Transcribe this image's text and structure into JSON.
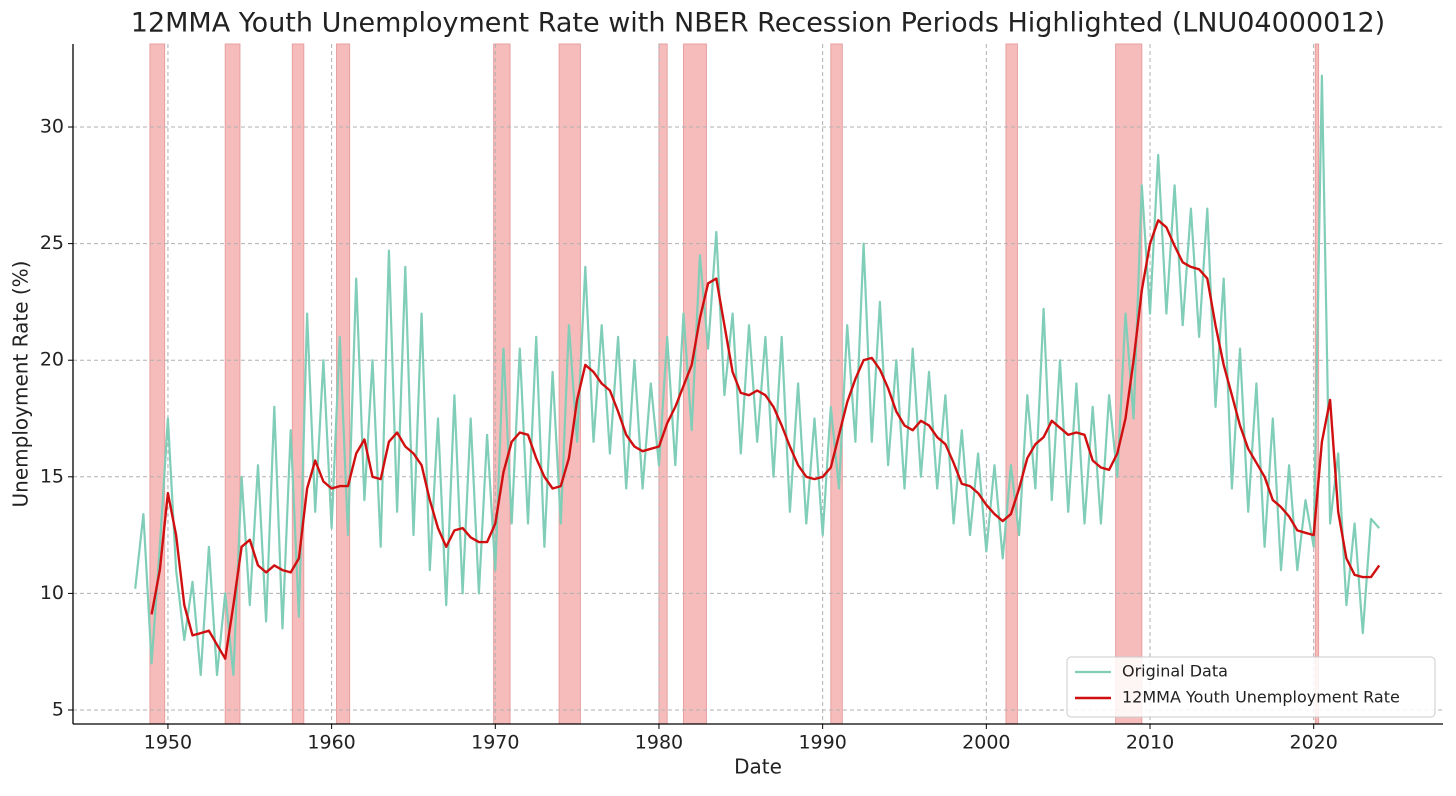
{
  "chart_data": {
    "type": "line",
    "title": "12MMA Youth Unemployment Rate with NBER Recession Periods Highlighted (LNU04000012)",
    "xlabel": "Date",
    "ylabel": "Unemployment Rate (%)",
    "xlim": [
      1944.2,
      2027.9
    ],
    "xticks": [
      1950,
      1960,
      1970,
      1980,
      1990,
      2000,
      2010,
      2020
    ],
    "ylim": [
      4.4,
      33.56
    ],
    "yticks": [
      5,
      10,
      15,
      20,
      25,
      30
    ],
    "grid": true,
    "legend": "lower right",
    "recession_color": "#f4a6a6",
    "recessions": [
      [
        1948.9,
        1949.8
      ],
      [
        1953.5,
        1954.4
      ],
      [
        1957.6,
        1958.3
      ],
      [
        1960.3,
        1961.1
      ],
      [
        1969.9,
        1970.9
      ],
      [
        1973.9,
        1975.2
      ],
      [
        1980.0,
        1980.5
      ],
      [
        1981.5,
        1982.9
      ],
      [
        1990.5,
        1991.2
      ],
      [
        2001.2,
        2001.9
      ],
      [
        2007.9,
        2009.5
      ],
      [
        2020.1,
        2020.3
      ]
    ],
    "x": [
      1948,
      1948.5,
      1949,
      1949.5,
      1950,
      1950.5,
      1951,
      1951.5,
      1952,
      1952.5,
      1953,
      1953.5,
      1954,
      1954.5,
      1955,
      1955.5,
      1956,
      1956.5,
      1957,
      1957.5,
      1958,
      1958.5,
      1959,
      1959.5,
      1960,
      1960.5,
      1961,
      1961.5,
      1962,
      1962.5,
      1963,
      1963.5,
      1964,
      1964.5,
      1965,
      1965.5,
      1966,
      1966.5,
      1967,
      1967.5,
      1968,
      1968.5,
      1969,
      1969.5,
      1970,
      1970.5,
      1971,
      1971.5,
      1972,
      1972.5,
      1973,
      1973.5,
      1974,
      1974.5,
      1975,
      1975.5,
      1976,
      1976.5,
      1977,
      1977.5,
      1978,
      1978.5,
      1979,
      1979.5,
      1980,
      1980.5,
      1981,
      1981.5,
      1982,
      1982.5,
      1983,
      1983.5,
      1984,
      1984.5,
      1985,
      1985.5,
      1986,
      1986.5,
      1987,
      1987.5,
      1988,
      1988.5,
      1989,
      1989.5,
      1990,
      1990.5,
      1991,
      1991.5,
      1992,
      1992.5,
      1993,
      1993.5,
      1994,
      1994.5,
      1995,
      1995.5,
      1996,
      1996.5,
      1997,
      1997.5,
      1998,
      1998.5,
      1999,
      1999.5,
      2000,
      2000.5,
      2001,
      2001.5,
      2002,
      2002.5,
      2003,
      2003.5,
      2004,
      2004.5,
      2005,
      2005.5,
      2006,
      2006.5,
      2007,
      2007.5,
      2008,
      2008.5,
      2009,
      2009.5,
      2010,
      2010.5,
      2011,
      2011.5,
      2012,
      2012.5,
      2013,
      2013.5,
      2014,
      2014.5,
      2015,
      2015.5,
      2016,
      2016.5,
      2017,
      2017.5,
      2018,
      2018.5,
      2019,
      2019.5,
      2020,
      2020.5,
      2021,
      2021.5,
      2022,
      2022.5,
      2023,
      2023.5,
      2024
    ],
    "series": [
      {
        "name": "Original Data",
        "color": "#80cdb8",
        "width": 2.2,
        "values": [
          10.2,
          13.4,
          7.0,
          12.0,
          17.5,
          11.0,
          8.0,
          10.5,
          6.5,
          12.0,
          6.5,
          10.0,
          6.5,
          15.0,
          9.5,
          15.5,
          8.8,
          18.0,
          8.5,
          17.0,
          9.0,
          22.0,
          13.5,
          20.0,
          12.8,
          21.0,
          12.5,
          23.5,
          14.0,
          20.0,
          12.0,
          24.7,
          13.5,
          24.0,
          12.5,
          22.0,
          11.0,
          17.5,
          9.5,
          18.5,
          10.0,
          17.5,
          10.0,
          16.8,
          11.0,
          20.5,
          13.0,
          20.5,
          13.0,
          21.0,
          12.0,
          19.5,
          13.0,
          21.5,
          16.5,
          24.0,
          16.5,
          21.5,
          16.0,
          21.0,
          14.5,
          20.0,
          14.5,
          19.0,
          15.5,
          21.0,
          15.5,
          22.0,
          17.0,
          24.5,
          20.5,
          25.5,
          18.5,
          22.0,
          16.0,
          21.5,
          16.5,
          21.0,
          15.0,
          21.0,
          13.5,
          19.0,
          13.0,
          17.5,
          12.5,
          18.0,
          14.5,
          21.5,
          16.5,
          25.0,
          16.5,
          22.5,
          15.5,
          20.0,
          14.5,
          20.5,
          15.0,
          19.5,
          14.5,
          18.5,
          13.0,
          17.0,
          12.5,
          16.0,
          11.8,
          15.5,
          11.5,
          15.5,
          12.5,
          18.5,
          14.5,
          22.2,
          14.0,
          20.0,
          13.5,
          19.0,
          13.0,
          18.0,
          13.0,
          18.5,
          15.0,
          22.0,
          17.5,
          27.5,
          22.0,
          28.8,
          22.0,
          27.5,
          21.5,
          26.5,
          21.0,
          26.5,
          18.0,
          23.5,
          14.5,
          20.5,
          13.5,
          19.0,
          12.0,
          17.5,
          11.0,
          15.5,
          11.0,
          14.0,
          12.0,
          32.2,
          13.0,
          16.0,
          9.5,
          13.0,
          8.3,
          13.2,
          12.8
        ]
      },
      {
        "name": "12MMA Youth Unemployment Rate",
        "color": "#d01010",
        "width": 2.4,
        "values": [
          null,
          null,
          9.1,
          11.0,
          14.3,
          12.5,
          9.5,
          8.2,
          8.3,
          8.4,
          7.8,
          7.2,
          9.5,
          12.0,
          12.3,
          11.2,
          10.9,
          11.2,
          11.0,
          10.9,
          11.5,
          14.5,
          15.7,
          14.8,
          14.5,
          14.6,
          14.6,
          16.0,
          16.6,
          15.0,
          14.9,
          16.5,
          16.9,
          16.3,
          16.0,
          15.5,
          14.0,
          12.8,
          12.0,
          12.7,
          12.8,
          12.4,
          12.2,
          12.2,
          13.0,
          15.2,
          16.5,
          16.9,
          16.8,
          15.8,
          15.0,
          14.5,
          14.6,
          15.8,
          18.3,
          19.8,
          19.5,
          19.0,
          18.7,
          17.8,
          16.8,
          16.3,
          16.1,
          16.2,
          16.3,
          17.3,
          18.0,
          18.9,
          19.8,
          21.8,
          23.3,
          23.5,
          21.5,
          19.5,
          18.6,
          18.5,
          18.7,
          18.5,
          18.0,
          17.2,
          16.3,
          15.5,
          15.0,
          14.9,
          15.0,
          15.4,
          16.8,
          18.2,
          19.2,
          20.0,
          20.1,
          19.6,
          18.8,
          17.8,
          17.2,
          17.0,
          17.4,
          17.2,
          16.7,
          16.4,
          15.6,
          14.7,
          14.6,
          14.3,
          13.8,
          13.4,
          13.1,
          13.4,
          14.5,
          15.8,
          16.4,
          16.7,
          17.4,
          17.1,
          16.8,
          16.9,
          16.8,
          15.7,
          15.4,
          15.3,
          16.0,
          17.5,
          20.0,
          23.0,
          25.0,
          26.0,
          25.7,
          24.9,
          24.2,
          24.0,
          23.9,
          23.5,
          21.5,
          19.8,
          18.5,
          17.2,
          16.2,
          15.6,
          15.0,
          14.0,
          13.7,
          13.3,
          12.7,
          12.6,
          12.5,
          16.5,
          18.3,
          13.5,
          11.5,
          10.8,
          10.7,
          10.7,
          11.2
        ]
      }
    ]
  }
}
